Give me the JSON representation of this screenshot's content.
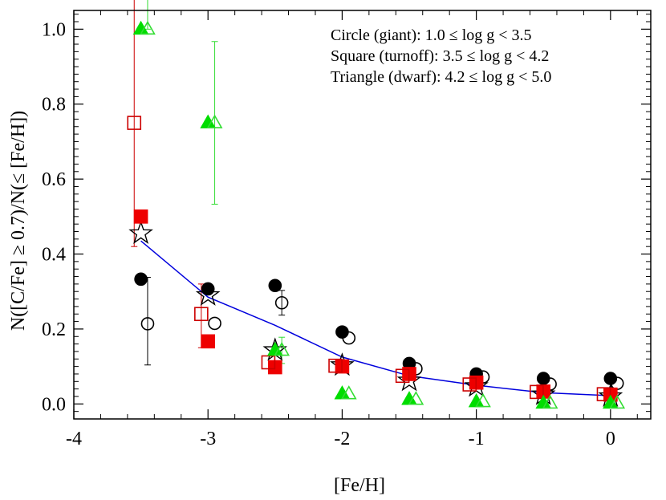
{
  "chart_data": {
    "type": "scatter",
    "title": "",
    "xlabel": "[Fe/H]",
    "ylabel": "N([C/Fe] ≥ 0.7)/N(≤ [Fe/H])",
    "xlim": [
      -4,
      0.3
    ],
    "ylim": [
      -0.04,
      1.05
    ],
    "xticks": [
      -4,
      -3,
      -2,
      -1,
      0
    ],
    "xtick_labels": [
      "-4",
      "-3",
      "-2",
      "-1",
      "0"
    ],
    "yticks": [
      0.0,
      0.2,
      0.4,
      0.6,
      0.8,
      1.0
    ],
    "ytick_labels": [
      "0.0",
      "0.2",
      "0.4",
      "0.6",
      "0.8",
      "1.0"
    ],
    "legend": {
      "placement": "top-right",
      "entries": [
        "Circle (giant): 1.0 ≤ log g < 3.5",
        "Square (turnoff): 3.5 ≤ log g < 4.2",
        "Triangle (dwarf): 4.2 ≤ log g < 5.0"
      ]
    },
    "line": {
      "color": "#0000dd",
      "x": [
        -3.5,
        -3.0,
        -2.5,
        -2.0,
        -1.5,
        -1.0,
        -0.5,
        0.0
      ],
      "y": [
        0.435,
        0.285,
        0.21,
        0.125,
        0.075,
        0.05,
        0.03,
        0.022
      ]
    },
    "series": [
      {
        "marker": "star",
        "fill": "none",
        "color": "#000000",
        "points": [
          {
            "x": -3.5,
            "y": 0.455
          },
          {
            "x": -3.0,
            "y": 0.29
          },
          {
            "x": -2.5,
            "y": 0.143
          },
          {
            "x": -2.0,
            "y": 0.103
          },
          {
            "x": -1.5,
            "y": 0.062
          },
          {
            "x": -1.0,
            "y": 0.047
          },
          {
            "x": -0.5,
            "y": 0.025
          },
          {
            "x": 0.0,
            "y": 0.02
          }
        ]
      },
      {
        "marker": "circle",
        "fill": "filled",
        "color": "#000000",
        "points": [
          {
            "x": -3.5,
            "y": 0.333
          },
          {
            "x": -3.0,
            "y": 0.307
          },
          {
            "x": -2.5,
            "y": 0.316
          },
          {
            "x": -2.0,
            "y": 0.192
          },
          {
            "x": -1.5,
            "y": 0.108
          },
          {
            "x": -1.0,
            "y": 0.08
          },
          {
            "x": -0.5,
            "y": 0.068
          },
          {
            "x": 0.0,
            "y": 0.068
          }
        ]
      },
      {
        "marker": "circle",
        "fill": "open",
        "color": "#000000",
        "points": [
          {
            "x": -3.45,
            "y": 0.214,
            "err": [
              0.124,
              0.11
            ]
          },
          {
            "x": -2.95,
            "y": 0.215
          },
          {
            "x": -2.45,
            "y": 0.27,
            "err": [
              0.033,
              0.033
            ]
          },
          {
            "x": -1.95,
            "y": 0.176
          },
          {
            "x": -1.45,
            "y": 0.094
          },
          {
            "x": -0.95,
            "y": 0.072
          },
          {
            "x": -0.45,
            "y": 0.053
          },
          {
            "x": 0.05,
            "y": 0.055
          }
        ]
      },
      {
        "marker": "square",
        "fill": "filled",
        "color": "#ee0000",
        "points": [
          {
            "x": -3.5,
            "y": 0.5
          },
          {
            "x": -3.0,
            "y": 0.167
          },
          {
            "x": -2.5,
            "y": 0.098
          },
          {
            "x": -2.0,
            "y": 0.1
          },
          {
            "x": -1.5,
            "y": 0.08
          },
          {
            "x": -1.0,
            "y": 0.057
          },
          {
            "x": -0.5,
            "y": 0.033
          },
          {
            "x": 0.0,
            "y": 0.025
          }
        ]
      },
      {
        "marker": "square",
        "fill": "open",
        "color": "#cc0000",
        "points": [
          {
            "x": -3.55,
            "y": 0.75,
            "err": [
              0.43,
              0.33
            ]
          },
          {
            "x": -3.05,
            "y": 0.24,
            "err": [
              0.08,
              0.09
            ]
          },
          {
            "x": -2.55,
            "y": 0.111
          },
          {
            "x": -2.05,
            "y": 0.102
          },
          {
            "x": -1.55,
            "y": 0.075
          },
          {
            "x": -1.05,
            "y": 0.052
          },
          {
            "x": -0.55,
            "y": 0.032
          },
          {
            "x": -0.05,
            "y": 0.026
          }
        ]
      },
      {
        "marker": "triangle",
        "fill": "filled",
        "color": "#00dd00",
        "points": [
          {
            "x": -3.5,
            "y": 1.0
          },
          {
            "x": -3.0,
            "y": 0.75
          },
          {
            "x": -2.5,
            "y": 0.143
          },
          {
            "x": -2.0,
            "y": 0.027
          },
          {
            "x": -1.5,
            "y": 0.012
          },
          {
            "x": -1.0,
            "y": 0.006
          },
          {
            "x": -0.5,
            "y": 0.002
          },
          {
            "x": 0.0,
            "y": 0.002
          }
        ]
      },
      {
        "marker": "triangle",
        "fill": "open",
        "color": "#33dd33",
        "points": [
          {
            "x": -3.45,
            "y": 1.0,
            "err": [
              0.5,
              0.0
            ]
          },
          {
            "x": -2.95,
            "y": 0.75,
            "err": [
              0.217,
              0.217
            ]
          },
          {
            "x": -2.45,
            "y": 0.143,
            "err": [
              0.035,
              0.035
            ]
          },
          {
            "x": -1.95,
            "y": 0.027
          },
          {
            "x": -1.45,
            "y": 0.012
          },
          {
            "x": -0.95,
            "y": 0.006
          },
          {
            "x": -0.45,
            "y": 0.002
          },
          {
            "x": 0.05,
            "y": 0.002
          }
        ]
      }
    ]
  }
}
